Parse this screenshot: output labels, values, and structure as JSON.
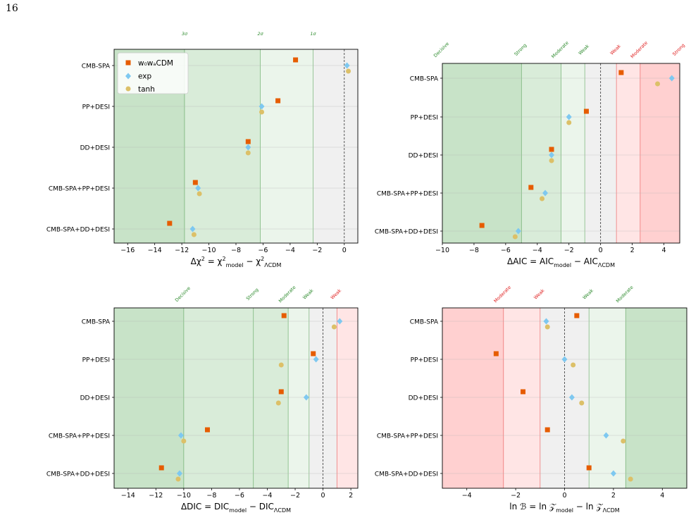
{
  "page_number": "16",
  "colors": {
    "w0wa": "#e65c00",
    "exp": "#7ec8f0",
    "tanh": "#dcc068",
    "green_text": "#2e8b2e",
    "red_text": "#e02020",
    "green_strong": "#c8e3c8",
    "green_mid": "#d9ecd9",
    "green_light": "#ebf5eb",
    "red_strong": "#ffd0d0",
    "red_light": "#ffe5e5",
    "neutral": "#f0f0f0"
  },
  "legend": {
    "w0wa_label": "w₀wₐCDM",
    "exp_label": "exp",
    "tanh_label": "tanh"
  },
  "chart_data": [
    {
      "type": "scatter",
      "panel": "chi2",
      "categories": [
        "CMB-SPA",
        "PP+DESI",
        "DD+DESI",
        "CMB-SPA+PP+DESI",
        "CMB-SPA+DD+DESI"
      ],
      "xlabel": "Δχ² = χ²model − χ²ΛCDM",
      "xlim": [
        -17,
        1.0
      ],
      "xticks": [
        -16,
        -14,
        -12,
        -10,
        -8,
        -6,
        -4,
        -2,
        0
      ],
      "legend_placement": "top-left",
      "regions": [
        {
          "from": -17,
          "to": -11.8,
          "color": "green_strong"
        },
        {
          "from": -11.8,
          "to": -6.2,
          "color": "green_mid"
        },
        {
          "from": -6.2,
          "to": -2.3,
          "color": "green_light"
        },
        {
          "from": -2.3,
          "to": 1.0,
          "color": "neutral"
        }
      ],
      "threshold_labels": [
        {
          "x": -11.8,
          "text": "3σ",
          "color": "green"
        },
        {
          "x": -6.2,
          "text": "2σ",
          "color": "green"
        },
        {
          "x": -2.3,
          "text": "1σ",
          "color": "green"
        }
      ],
      "series": [
        {
          "name": "w0waCDM",
          "marker": "square",
          "values": [
            -3.6,
            -4.9,
            -7.1,
            -11.0,
            -12.9
          ]
        },
        {
          "name": "exp",
          "marker": "diamond",
          "values": [
            0.2,
            -6.1,
            -7.1,
            -10.8,
            -11.2
          ]
        },
        {
          "name": "tanh",
          "marker": "circle",
          "values": [
            0.3,
            -6.1,
            -7.1,
            -10.7,
            -11.1
          ]
        }
      ]
    },
    {
      "type": "scatter",
      "panel": "aic",
      "categories": [
        "CMB-SPA",
        "PP+DESI",
        "DD+DESI",
        "CMB-SPA+PP+DESI",
        "CMB-SPA+DD+DESI"
      ],
      "xlabel": "ΔAIC = AICmodel − AICΛCDM",
      "xlim": [
        -10,
        5
      ],
      "xticks": [
        -10,
        -8,
        -6,
        -4,
        -2,
        0,
        2,
        4
      ],
      "regions": [
        {
          "from": -10,
          "to": -5,
          "color": "green_strong"
        },
        {
          "from": -5,
          "to": -2.5,
          "color": "green_mid"
        },
        {
          "from": -2.5,
          "to": -1,
          "color": "green_light"
        },
        {
          "from": -1,
          "to": 1,
          "color": "neutral"
        },
        {
          "from": 1,
          "to": 2.5,
          "color": "red_light"
        },
        {
          "from": 2.5,
          "to": 5,
          "color": "red_strong"
        }
      ],
      "threshold_labels": [
        {
          "x": -10,
          "text": "Decisive",
          "color": "green"
        },
        {
          "x": -5,
          "text": "Strong",
          "color": "green"
        },
        {
          "x": -2.5,
          "text": "Moderate",
          "color": "green"
        },
        {
          "x": -1,
          "text": "Weak",
          "color": "green"
        },
        {
          "x": 1,
          "text": "Weak",
          "color": "red"
        },
        {
          "x": 2.5,
          "text": "Moderate",
          "color": "red"
        },
        {
          "x": 5,
          "text": "Strong",
          "color": "red"
        }
      ],
      "series": [
        {
          "name": "w0waCDM",
          "marker": "square",
          "values": [
            1.3,
            -0.9,
            -3.1,
            -4.4,
            -7.5
          ]
        },
        {
          "name": "exp",
          "marker": "diamond",
          "values": [
            4.5,
            -2.0,
            -3.1,
            -3.5,
            -5.2
          ]
        },
        {
          "name": "tanh",
          "marker": "circle",
          "values": [
            3.6,
            -2.0,
            -3.1,
            -3.7,
            -5.4
          ]
        }
      ]
    },
    {
      "type": "scatter",
      "panel": "dic",
      "categories": [
        "CMB-SPA",
        "PP+DESI",
        "DD+DESI",
        "CMB-SPA+PP+DESI",
        "CMB-SPA+DD+DESI"
      ],
      "xlabel": "ΔDIC = DICmodel − DICΛCDM",
      "xlim": [
        -15,
        2.5
      ],
      "xticks": [
        -14,
        -12,
        -10,
        -8,
        -6,
        -4,
        -2,
        0,
        2
      ],
      "regions": [
        {
          "from": -15,
          "to": -10,
          "color": "green_strong"
        },
        {
          "from": -10,
          "to": -5,
          "color": "green_mid"
        },
        {
          "from": -5,
          "to": -2.5,
          "color": "green_mid"
        },
        {
          "from": -2.5,
          "to": -1,
          "color": "green_light"
        },
        {
          "from": -1,
          "to": 1,
          "color": "neutral"
        },
        {
          "from": 1,
          "to": 2.5,
          "color": "red_light"
        }
      ],
      "threshold_labels": [
        {
          "x": -10,
          "text": "Decisive",
          "color": "green"
        },
        {
          "x": -5,
          "text": "Strong",
          "color": "green"
        },
        {
          "x": -2.5,
          "text": "Moderate",
          "color": "green"
        },
        {
          "x": -1,
          "text": "Weak",
          "color": "green"
        },
        {
          "x": 1,
          "text": "Weak",
          "color": "red"
        }
      ],
      "series": [
        {
          "name": "w0waCDM",
          "marker": "square",
          "values": [
            -2.8,
            -0.7,
            -3.0,
            -8.3,
            -11.6
          ]
        },
        {
          "name": "exp",
          "marker": "diamond",
          "values": [
            1.2,
            -0.5,
            -1.2,
            -10.2,
            -10.3
          ]
        },
        {
          "name": "tanh",
          "marker": "circle",
          "values": [
            0.8,
            -3.0,
            -3.2,
            -10.0,
            -10.4
          ]
        }
      ]
    },
    {
      "type": "scatter",
      "panel": "lnB",
      "categories": [
        "CMB-SPA",
        "PP+DESI",
        "DD+DESI",
        "CMB-SPA+PP+DESI",
        "CMB-SPA+DD+DESI"
      ],
      "xlabel": "ln ℬ = ln 𝒵model − ln 𝒵ΛCDM",
      "xlim": [
        -5,
        5
      ],
      "xticks": [
        -4,
        -2,
        0,
        2,
        4
      ],
      "regions": [
        {
          "from": -5,
          "to": -2.5,
          "color": "red_strong"
        },
        {
          "from": -2.5,
          "to": -1,
          "color": "red_light"
        },
        {
          "from": -1,
          "to": 1,
          "color": "neutral"
        },
        {
          "from": 1,
          "to": 2.5,
          "color": "green_light"
        },
        {
          "from": 2.5,
          "to": 5,
          "color": "green_strong"
        }
      ],
      "threshold_labels": [
        {
          "x": -2.5,
          "text": "Moderate",
          "color": "red"
        },
        {
          "x": -1,
          "text": "Weak",
          "color": "red"
        },
        {
          "x": 1,
          "text": "Weak",
          "color": "green"
        },
        {
          "x": 2.5,
          "text": "Moderate",
          "color": "green"
        }
      ],
      "series": [
        {
          "name": "w0waCDM",
          "marker": "square",
          "values": [
            0.5,
            -2.8,
            -1.7,
            -0.7,
            1.0
          ]
        },
        {
          "name": "exp",
          "marker": "diamond",
          "values": [
            -0.75,
            0.0,
            0.3,
            1.7,
            2.0
          ]
        },
        {
          "name": "tanh",
          "marker": "circle",
          "values": [
            -0.7,
            0.35,
            0.7,
            2.4,
            2.7
          ]
        }
      ]
    }
  ]
}
